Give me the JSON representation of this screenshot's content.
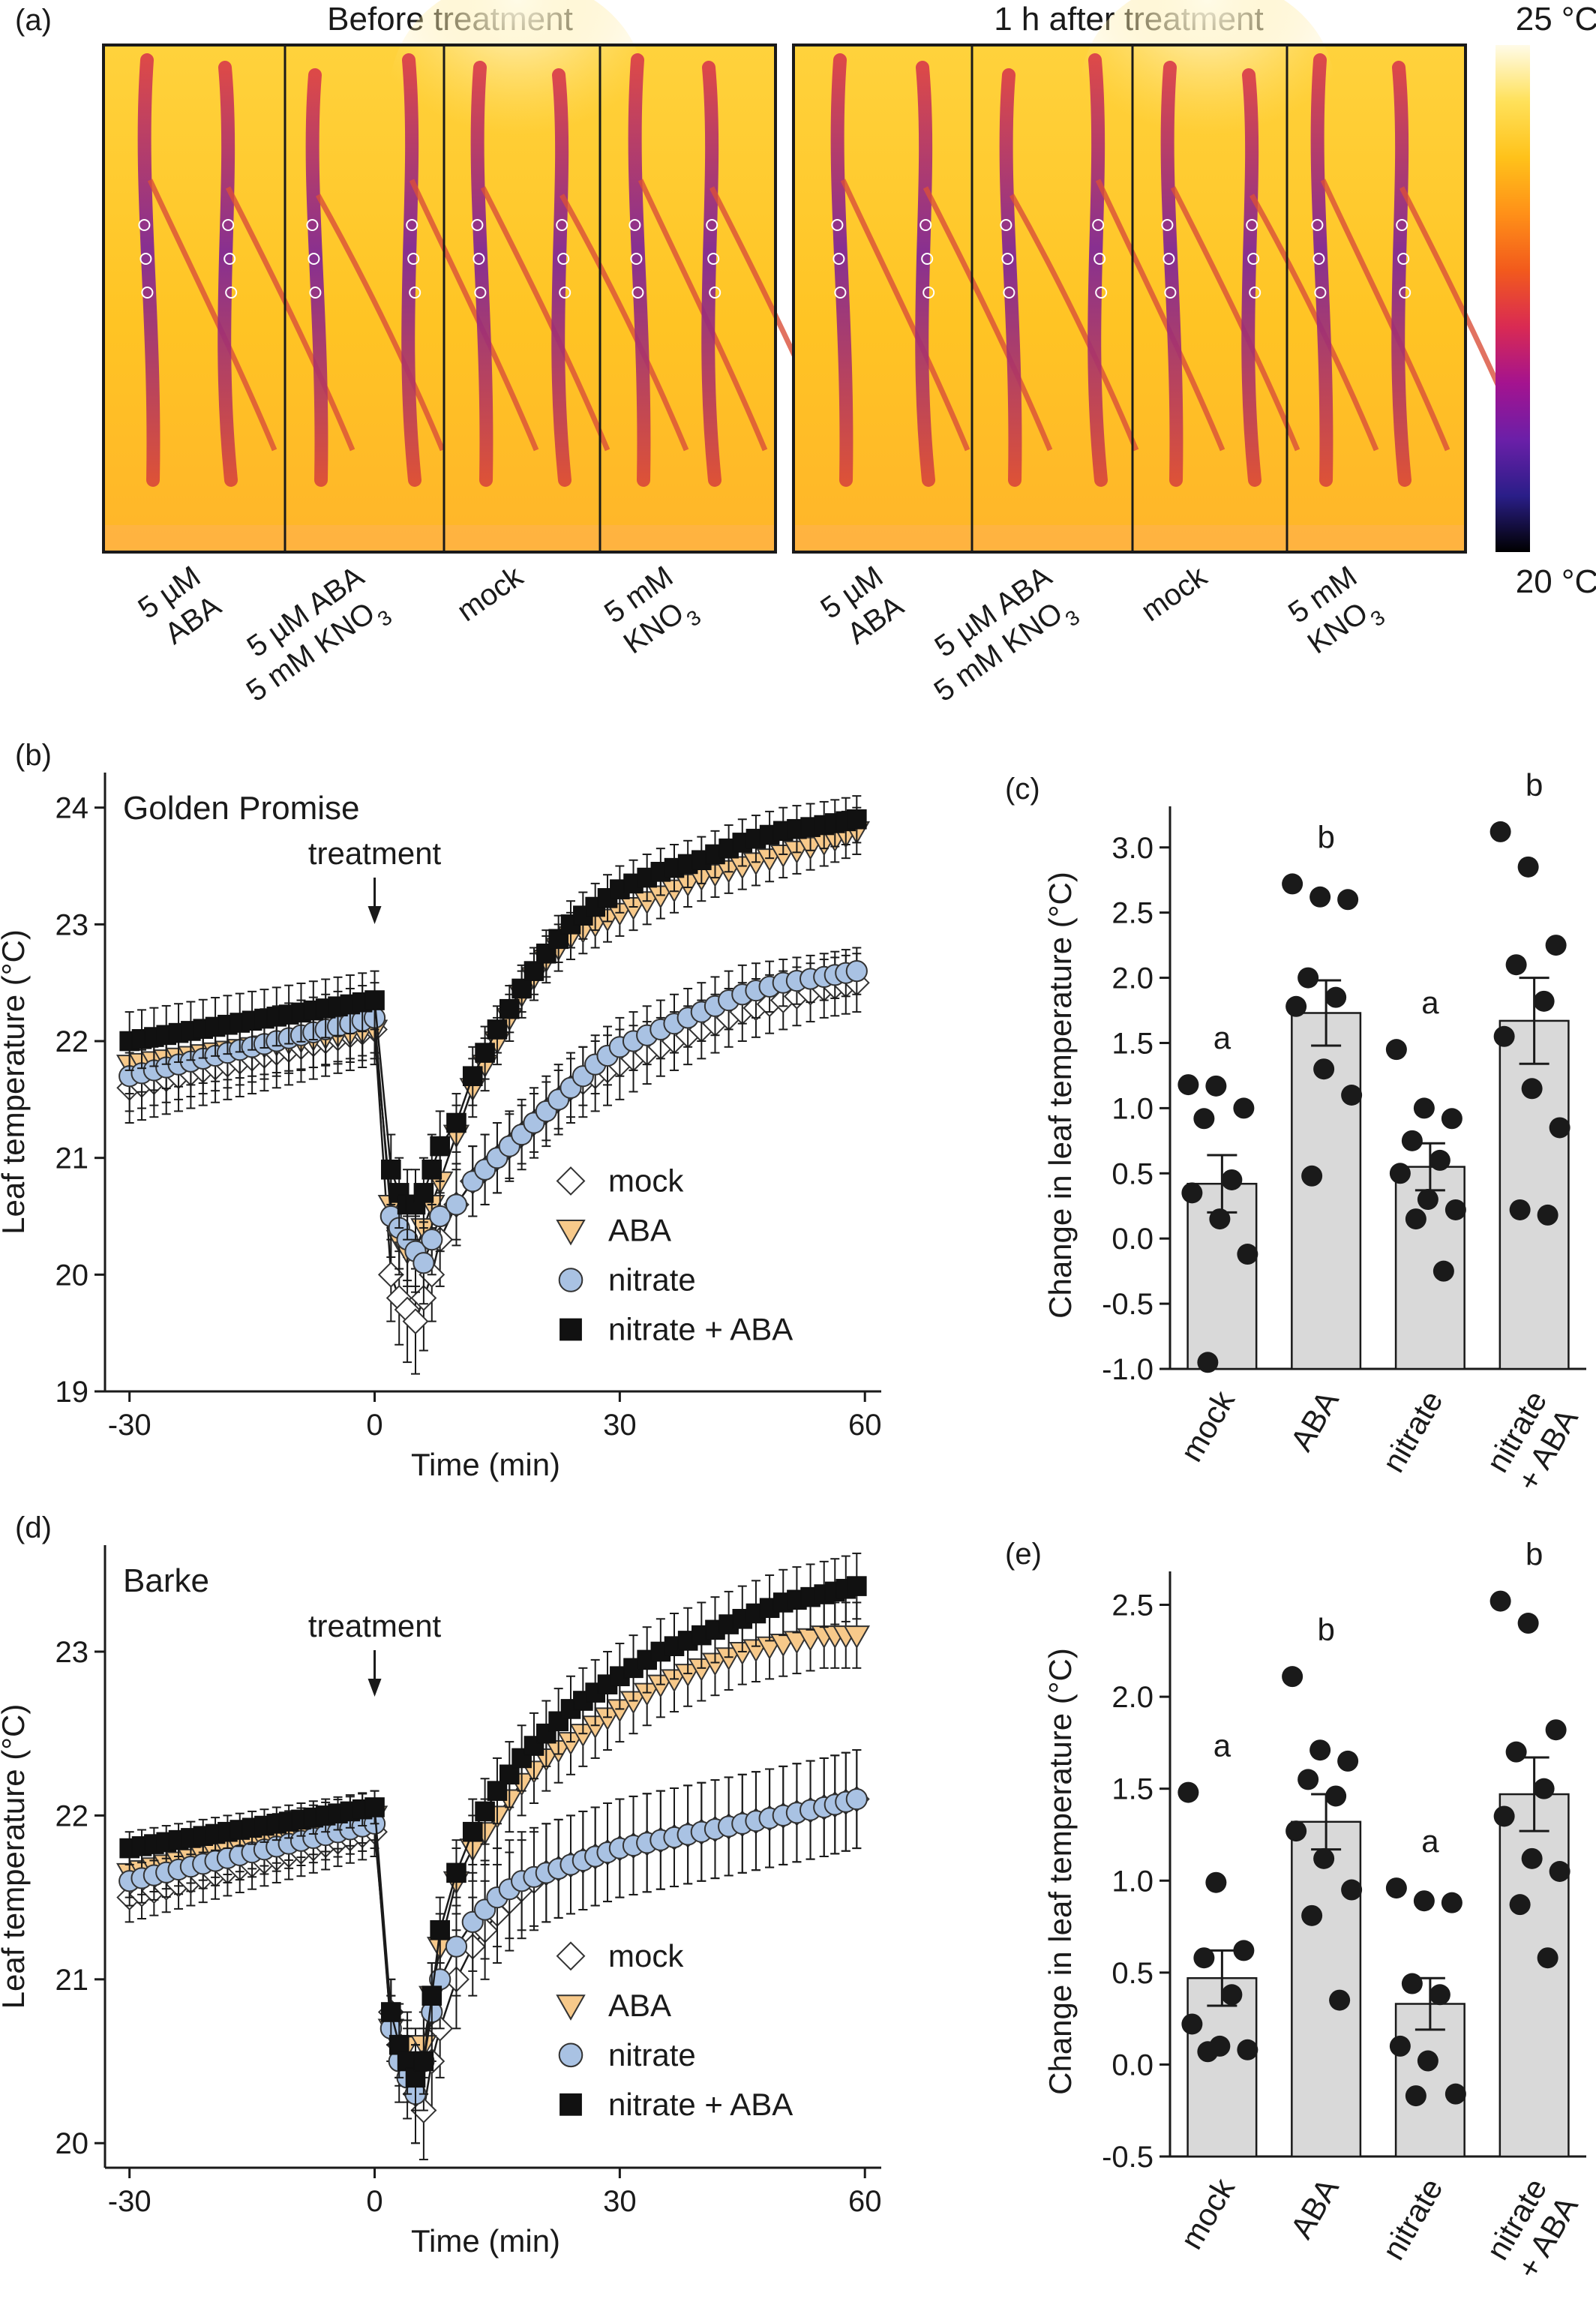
{
  "panel_a": {
    "label": "(a)",
    "image_titles": [
      "Before treatment",
      "1 h after treatment"
    ],
    "colorbar": {
      "max_label": "25 °C",
      "min_label": "20 °C",
      "stops": [
        "#fffbe8",
        "#ffe15a",
        "#ffc21a",
        "#ff9018",
        "#f25a1c",
        "#d92a53",
        "#a4138f",
        "#6b1fa8",
        "#2a1e88",
        "#000000"
      ]
    },
    "treatments": [
      {
        "lines": [
          "5 µM",
          "ABA"
        ]
      },
      {
        "lines": [
          "5 µM ABA",
          "5 mM KNO3"
        ]
      },
      {
        "lines": [
          "mock"
        ]
      },
      {
        "lines": [
          "5 mM",
          "KNO3"
        ]
      }
    ],
    "icon": "thermal-image-icon"
  },
  "chart_data": [
    {
      "panel": "(b)",
      "type": "line",
      "title": "Golden Promise",
      "xlabel": "Time (min)",
      "ylabel": "Leaf temperature (°C)",
      "xlim": [
        -33,
        62
      ],
      "ylim": [
        19,
        24.3
      ],
      "xticks": [
        -30,
        0,
        30,
        60
      ],
      "yticks": [
        19,
        20,
        21,
        22,
        23,
        24
      ],
      "annotation": "treatment",
      "x": [
        -30,
        0,
        2,
        3,
        4,
        5,
        6,
        7,
        8,
        10,
        12,
        15,
        18,
        21,
        24,
        27,
        30,
        35,
        40,
        45,
        50,
        55,
        59
      ],
      "series": [
        {
          "name": "mock",
          "marker": "diamond",
          "color": "#ffffff",
          "values": [
            21.6,
            22.1,
            20.0,
            19.8,
            19.7,
            19.6,
            19.8,
            20.0,
            20.3,
            20.6,
            20.8,
            21.0,
            21.2,
            21.4,
            21.6,
            21.7,
            21.8,
            21.95,
            22.1,
            22.25,
            22.35,
            22.45,
            22.5
          ],
          "errors": [
            0.3,
            0.3,
            0.4,
            0.4,
            0.45,
            0.45,
            0.45,
            0.4,
            0.4,
            0.35,
            0.3,
            0.3,
            0.3,
            0.3,
            0.3,
            0.3,
            0.3,
            0.25,
            0.25,
            0.25,
            0.25,
            0.25,
            0.25
          ]
        },
        {
          "name": "ABA",
          "marker": "triangle",
          "color": "#f7c98a",
          "values": [
            21.8,
            22.1,
            20.6,
            20.3,
            20.2,
            20.2,
            20.4,
            20.6,
            20.8,
            21.2,
            21.6,
            22.0,
            22.4,
            22.7,
            22.9,
            23.0,
            23.1,
            23.25,
            23.4,
            23.5,
            23.6,
            23.7,
            23.8
          ],
          "errors": [
            0.25,
            0.25,
            0.3,
            0.3,
            0.3,
            0.3,
            0.3,
            0.3,
            0.3,
            0.25,
            0.25,
            0.2,
            0.2,
            0.2,
            0.2,
            0.2,
            0.2,
            0.2,
            0.2,
            0.2,
            0.2,
            0.2,
            0.2
          ]
        },
        {
          "name": "nitrate",
          "marker": "circle",
          "color": "#a9c2e3",
          "values": [
            21.7,
            22.2,
            20.5,
            20.4,
            20.3,
            20.2,
            20.1,
            20.3,
            20.5,
            20.6,
            20.8,
            21.0,
            21.2,
            21.4,
            21.6,
            21.8,
            21.95,
            22.1,
            22.25,
            22.4,
            22.5,
            22.55,
            22.6
          ],
          "errors": [
            0.3,
            0.3,
            0.35,
            0.35,
            0.35,
            0.35,
            0.35,
            0.3,
            0.3,
            0.3,
            0.3,
            0.3,
            0.25,
            0.25,
            0.25,
            0.25,
            0.25,
            0.25,
            0.25,
            0.25,
            0.2,
            0.2,
            0.2
          ]
        },
        {
          "name": "nitrate + ABA",
          "marker": "square",
          "color": "#111111",
          "values": [
            22.0,
            22.35,
            20.9,
            20.7,
            20.6,
            20.6,
            20.7,
            20.9,
            21.1,
            21.3,
            21.7,
            22.1,
            22.45,
            22.75,
            23.0,
            23.15,
            23.3,
            23.45,
            23.55,
            23.7,
            23.8,
            23.85,
            23.9
          ],
          "errors": [
            0.25,
            0.25,
            0.3,
            0.3,
            0.3,
            0.3,
            0.3,
            0.3,
            0.3,
            0.25,
            0.25,
            0.2,
            0.2,
            0.2,
            0.2,
            0.2,
            0.2,
            0.2,
            0.2,
            0.2,
            0.2,
            0.2,
            0.2
          ]
        }
      ],
      "legend": "right"
    },
    {
      "panel": "(c)",
      "type": "bar",
      "ylabel": "Change in leaf temperature (°C)",
      "categories": [
        "mock",
        "ABA",
        "nitrate",
        "nitrate\n+ ABA"
      ],
      "values": [
        0.42,
        1.73,
        0.55,
        1.67
      ],
      "errors": [
        0.22,
        0.25,
        0.18,
        0.33
      ],
      "letters": [
        "a",
        "b",
        "a",
        "b"
      ],
      "points": [
        [
          1.18,
          1.17,
          1.0,
          0.92,
          0.45,
          0.35,
          0.15,
          -0.12,
          -0.95
        ],
        [
          2.72,
          2.62,
          2.6,
          2.0,
          1.85,
          1.78,
          1.3,
          1.1,
          0.48
        ],
        [
          1.45,
          1.0,
          0.92,
          0.75,
          0.6,
          0.5,
          0.3,
          0.22,
          0.15,
          -0.25
        ],
        [
          3.12,
          2.85,
          2.25,
          2.1,
          1.82,
          1.55,
          1.15,
          0.85,
          0.22,
          0.18
        ]
      ],
      "ylim": [
        -1.0,
        3.2
      ],
      "yticks": [
        -1.0,
        -0.5,
        0.0,
        0.5,
        1.0,
        1.5,
        2.0,
        2.5,
        3.0
      ],
      "ytick_labels": [
        "-1.0",
        "-0.5",
        "0.0",
        "0.5",
        "1.0",
        "1.5",
        "2.0",
        "2.5",
        "3.0"
      ]
    },
    {
      "panel": "(d)",
      "type": "line",
      "title": "Barke",
      "xlabel": "Time (min)",
      "ylabel": "Leaf temperature (°C)",
      "xlim": [
        -33,
        62
      ],
      "ylim": [
        19.85,
        23.65
      ],
      "xticks": [
        -30,
        0,
        30,
        60
      ],
      "yticks": [
        20,
        21,
        22,
        23
      ],
      "annotation": "treatment",
      "x": [
        -30,
        0,
        2,
        3,
        4,
        5,
        6,
        7,
        8,
        10,
        12,
        15,
        18,
        21,
        24,
        27,
        30,
        35,
        40,
        45,
        50,
        55,
        59
      ],
      "series": [
        {
          "name": "mock",
          "marker": "diamond",
          "color": "#ffffff",
          "values": [
            21.5,
            21.9,
            20.8,
            20.6,
            20.5,
            20.3,
            20.2,
            20.5,
            20.7,
            21.0,
            21.2,
            21.4,
            21.55,
            21.65,
            21.7,
            21.75,
            21.8,
            21.85,
            21.9,
            21.95,
            22.0,
            22.05,
            22.1
          ],
          "errors": [
            0.15,
            0.15,
            0.2,
            0.25,
            0.25,
            0.3,
            0.3,
            0.3,
            0.3,
            0.3,
            0.3,
            0.3,
            0.3,
            0.3,
            0.3,
            0.3,
            0.3,
            0.3,
            0.3,
            0.3,
            0.3,
            0.3,
            0.3
          ]
        },
        {
          "name": "ABA",
          "marker": "triangle",
          "color": "#f7c98a",
          "values": [
            21.65,
            22.0,
            20.7,
            20.6,
            20.6,
            20.5,
            20.6,
            20.9,
            21.2,
            21.6,
            21.8,
            22.0,
            22.2,
            22.35,
            22.45,
            22.55,
            22.65,
            22.8,
            22.9,
            23.0,
            23.05,
            23.1,
            23.1
          ],
          "errors": [
            0.15,
            0.15,
            0.2,
            0.2,
            0.2,
            0.2,
            0.2,
            0.2,
            0.2,
            0.2,
            0.2,
            0.2,
            0.2,
            0.2,
            0.2,
            0.2,
            0.2,
            0.2,
            0.2,
            0.2,
            0.2,
            0.2,
            0.2
          ]
        },
        {
          "name": "nitrate",
          "marker": "circle",
          "color": "#a9c2e3",
          "values": [
            21.6,
            21.95,
            20.7,
            20.5,
            20.4,
            20.3,
            20.5,
            20.8,
            21.0,
            21.2,
            21.35,
            21.5,
            21.6,
            21.65,
            21.7,
            21.75,
            21.8,
            21.85,
            21.9,
            21.95,
            22.0,
            22.05,
            22.1
          ],
          "errors": [
            0.15,
            0.15,
            0.2,
            0.25,
            0.25,
            0.3,
            0.3,
            0.3,
            0.3,
            0.3,
            0.3,
            0.3,
            0.3,
            0.3,
            0.3,
            0.3,
            0.3,
            0.3,
            0.3,
            0.3,
            0.3,
            0.3,
            0.3
          ]
        },
        {
          "name": "nitrate + ABA",
          "marker": "square",
          "color": "#111111",
          "values": [
            21.8,
            22.05,
            20.8,
            20.6,
            20.5,
            20.4,
            20.5,
            20.9,
            21.3,
            21.65,
            21.9,
            22.15,
            22.35,
            22.5,
            22.65,
            22.75,
            22.85,
            23.0,
            23.1,
            23.2,
            23.3,
            23.35,
            23.4
          ],
          "errors": [
            0.1,
            0.1,
            0.2,
            0.2,
            0.2,
            0.2,
            0.2,
            0.2,
            0.2,
            0.2,
            0.2,
            0.2,
            0.2,
            0.2,
            0.2,
            0.2,
            0.2,
            0.2,
            0.2,
            0.2,
            0.2,
            0.2,
            0.2
          ]
        }
      ],
      "legend": "right"
    },
    {
      "panel": "(e)",
      "type": "bar",
      "ylabel": "Change in leaf temperature (°C)",
      "categories": [
        "mock",
        "ABA",
        "nitrate",
        "nitrate\n+ ABA"
      ],
      "values": [
        0.47,
        1.32,
        0.33,
        1.47
      ],
      "errors": [
        0.15,
        0.15,
        0.14,
        0.2
      ],
      "letters": [
        "a",
        "b",
        "a",
        "b"
      ],
      "points": [
        [
          1.48,
          0.99,
          0.62,
          0.58,
          0.38,
          0.22,
          0.1,
          0.08,
          0.07
        ],
        [
          2.11,
          1.71,
          1.65,
          1.55,
          1.46,
          1.27,
          1.12,
          0.95,
          0.81,
          0.35
        ],
        [
          0.96,
          0.89,
          0.88,
          0.44,
          0.38,
          0.1,
          0.02,
          -0.16,
          -0.17
        ],
        [
          2.52,
          2.4,
          1.82,
          1.7,
          1.5,
          1.35,
          1.12,
          1.05,
          0.87,
          0.58
        ]
      ],
      "ylim": [
        -0.5,
        2.6
      ],
      "yticks": [
        -0.5,
        0.0,
        0.5,
        1.0,
        1.5,
        2.0,
        2.5
      ],
      "ytick_labels": [
        "-0.5",
        "0.0",
        "0.5",
        "1.0",
        "1.5",
        "2.0",
        "2.5"
      ]
    }
  ]
}
